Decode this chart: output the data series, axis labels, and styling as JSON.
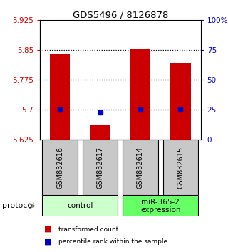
{
  "title": "GDS5496 / 8126878",
  "samples": [
    "GSM832616",
    "GSM832617",
    "GSM832614",
    "GSM832615"
  ],
  "red_bar_values": [
    5.84,
    5.663,
    5.852,
    5.818
  ],
  "blue_dot_values": [
    5.7,
    5.693,
    5.7,
    5.7
  ],
  "ymin": 5.625,
  "ymax": 5.925,
  "yticks_left": [
    5.625,
    5.7,
    5.775,
    5.85,
    5.925
  ],
  "yticks_right": [
    0,
    25,
    50,
    75,
    100
  ],
  "yticks_right_labels": [
    "0",
    "25",
    "50",
    "75",
    "100%"
  ],
  "bar_color": "#cc0000",
  "dot_color": "#0000cc",
  "left_tick_color": "#cc0000",
  "right_tick_color": "#0000cc",
  "groups": [
    {
      "label": "control",
      "samples": [
        0,
        1
      ],
      "color": "#ccffcc"
    },
    {
      "label": "miR-365-2\nexpression",
      "samples": [
        2,
        3
      ],
      "color": "#66ff66"
    }
  ],
  "protocol_label": "protocol",
  "legend_items": [
    {
      "color": "#cc0000",
      "label": "transformed count"
    },
    {
      "color": "#0000cc",
      "label": "percentile rank within the sample"
    }
  ],
  "bar_width": 0.5,
  "sample_box_color": "#c8c8c8",
  "sample_box_edge": "#000000",
  "grid_dotted_vals": [
    5.7,
    5.775,
    5.85
  ]
}
